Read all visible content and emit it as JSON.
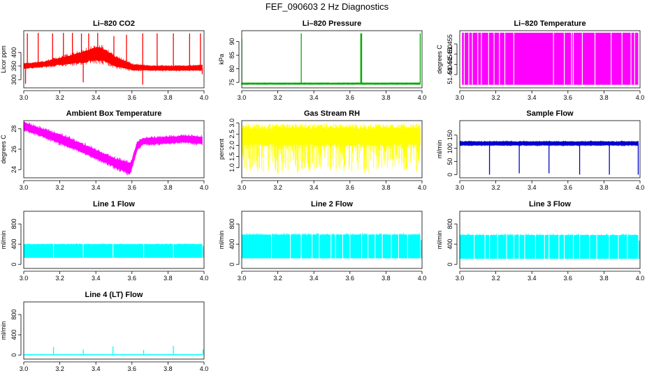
{
  "page": {
    "title": "FEF_090603  2 Hz Diagnostics"
  },
  "chart_data": [
    {
      "type": "line",
      "title": "Li–820 CO2",
      "ylabel": "Licor ppm",
      "xlim": [
        3.0,
        4.0
      ],
      "ylim": [
        270,
        480
      ],
      "xticks": [
        "3.0",
        "3.2",
        "3.4",
        "3.6",
        "3.8",
        "4.0"
      ],
      "yticks": [
        {
          "v": 300,
          "t": "300"
        },
        {
          "v": 350,
          "t": "350"
        },
        {
          "v": 400,
          "t": "400"
        }
      ],
      "color": "#ff0000",
      "series": [
        {
          "kind": "band",
          "x": [
            3.0,
            3.1,
            3.2,
            3.3,
            3.4,
            3.45,
            3.5,
            3.6,
            3.7,
            3.8,
            3.9,
            3.99
          ],
          "lower": [
            342,
            348,
            355,
            362,
            372,
            368,
            352,
            336,
            335,
            335,
            335,
            336
          ],
          "upper": [
            358,
            364,
            380,
            395,
            418,
            412,
            385,
            356,
            350,
            350,
            350,
            352
          ],
          "spikes": [
            {
              "x": 3.02,
              "v": 470
            },
            {
              "x": 3.08,
              "v": 472
            },
            {
              "x": 3.16,
              "v": 470
            },
            {
              "x": 3.22,
              "v": 472
            },
            {
              "x": 3.27,
              "v": 472
            },
            {
              "x": 3.32,
              "v": 470
            },
            {
              "x": 3.36,
              "v": 470
            },
            {
              "x": 3.41,
              "v": 472
            },
            {
              "x": 3.5,
              "v": 460
            },
            {
              "x": 3.57,
              "v": 465
            },
            {
              "x": 3.66,
              "v": 470
            },
            {
              "x": 3.74,
              "v": 470
            },
            {
              "x": 3.83,
              "v": 470
            },
            {
              "x": 3.92,
              "v": 470
            },
            {
              "x": 3.98,
              "v": 470
            },
            {
              "x": 3.01,
              "v": 285
            },
            {
              "x": 3.33,
              "v": 290
            },
            {
              "x": 3.66,
              "v": 282
            },
            {
              "x": 3.99,
              "v": 320
            }
          ]
        }
      ]
    },
    {
      "type": "line",
      "title": "Li–820 Pressure",
      "ylabel": "kPa",
      "xlim": [
        3.0,
        4.0
      ],
      "ylim": [
        73,
        94
      ],
      "xticks": [
        "3.0",
        "3.2",
        "3.4",
        "3.6",
        "3.8",
        "4.0"
      ],
      "yticks": [
        {
          "v": 75,
          "t": "75"
        },
        {
          "v": 80,
          "t": "80"
        },
        {
          "v": 85,
          "t": "85"
        },
        {
          "v": 90,
          "t": "90"
        }
      ],
      "color": "#00aa00",
      "series": [
        {
          "kind": "band",
          "x": [
            3.0,
            3.99
          ],
          "lower": [
            74.3,
            74.3
          ],
          "upper": [
            74.8,
            74.8
          ],
          "spikes": [
            {
              "x": 3.0,
              "v": 91.0
            },
            {
              "x": 3.33,
              "v": 93.0
            },
            {
              "x": 3.66,
              "v": 93.0
            },
            {
              "x": 3.665,
              "v": 93.0
            },
            {
              "x": 3.99,
              "v": 93.0
            }
          ]
        }
      ]
    },
    {
      "type": "line",
      "title": "Li–820 Temperature",
      "ylabel": "degrees C",
      "xlim": [
        3.0,
        4.0
      ],
      "ylim": [
        51.4335,
        51.4615
      ],
      "xticks": [
        "3.0",
        "3.2",
        "3.4",
        "3.6",
        "3.8",
        "4.0"
      ],
      "yticks": [
        {
          "v": 51.44,
          "t": "51.440"
        },
        {
          "v": 51.445,
          "t": "51.445"
        },
        {
          "v": 51.45,
          "t": "51.450"
        },
        {
          "v": 51.455,
          "t": "51.455"
        }
      ],
      "color": "#ff00ff",
      "series": [
        {
          "kind": "toggle",
          "low": 51.435,
          "high": 51.4605,
          "gaps": [
            3.01,
            3.025,
            3.05,
            3.07,
            3.1,
            3.12,
            3.16,
            3.19,
            3.22,
            3.25,
            3.3,
            3.52,
            3.58,
            3.62,
            3.63,
            3.68,
            3.75,
            3.84,
            3.9,
            3.95,
            3.97
          ]
        }
      ]
    },
    {
      "type": "line",
      "title": "Ambient Box Temperature",
      "ylabel": "degrees C",
      "xlim": [
        3.0,
        4.0
      ],
      "ylim": [
        23.2,
        28.8
      ],
      "xticks": [
        "3.0",
        "3.2",
        "3.4",
        "3.6",
        "3.8",
        "4.0"
      ],
      "yticks": [
        {
          "v": 24,
          "t": "24"
        },
        {
          "v": 26,
          "t": "26"
        },
        {
          "v": 28,
          "t": "28"
        }
      ],
      "color": "#ff00ff",
      "series": [
        {
          "kind": "band",
          "x": [
            3.0,
            3.1,
            3.2,
            3.3,
            3.4,
            3.5,
            3.59,
            3.6,
            3.63,
            3.66,
            3.7,
            3.8,
            3.9,
            3.99
          ],
          "lower": [
            27.9,
            27.3,
            26.6,
            25.9,
            25.1,
            24.3,
            23.6,
            24.2,
            26.0,
            26.5,
            26.5,
            26.6,
            26.7,
            26.5
          ],
          "upper": [
            28.6,
            28.0,
            27.4,
            26.7,
            25.9,
            25.1,
            24.6,
            24.9,
            26.7,
            27.0,
            27.1,
            27.2,
            27.3,
            27.2
          ],
          "spikes": []
        }
      ]
    },
    {
      "type": "line",
      "title": "Gas Stream RH",
      "ylabel": "percent",
      "xlim": [
        3.0,
        4.0
      ],
      "ylim": [
        0.55,
        3.1
      ],
      "xticks": [
        "3.0",
        "3.2",
        "3.4",
        "3.6",
        "3.8",
        "4.0"
      ],
      "yticks": [
        {
          "v": 1.0,
          "t": "1.0"
        },
        {
          "v": 1.5,
          "t": "1.5"
        },
        {
          "v": 2.0,
          "t": "2.0"
        },
        {
          "v": 2.5,
          "t": "2.5"
        },
        {
          "v": 3.0,
          "t": "3.0"
        }
      ],
      "color": "#ffff00",
      "series": [
        {
          "kind": "noiseband",
          "x": [
            3.0,
            3.99
          ],
          "lower": [
            2.05,
            2.05
          ],
          "upper": [
            2.75,
            2.75
          ],
          "dipTo": 0.75,
          "peakTo": 2.95,
          "density": 300
        }
      ]
    },
    {
      "type": "line",
      "title": "Sample Flow",
      "ylabel": "ml/min",
      "xlim": [
        3.0,
        4.0
      ],
      "ylim": [
        -12,
        205
      ],
      "xticks": [
        "3.0",
        "3.2",
        "3.4",
        "3.6",
        "3.8",
        "4.0"
      ],
      "yticks": [
        {
          "v": 0,
          "t": "0"
        },
        {
          "v": 50,
          "t": "50"
        },
        {
          "v": 100,
          "t": "100"
        },
        {
          "v": 150,
          "t": "150"
        }
      ],
      "color": "#0000cc",
      "series": [
        {
          "kind": "band",
          "x": [
            3.0,
            3.99
          ],
          "lower": [
            112,
            112
          ],
          "upper": [
            125,
            125
          ],
          "spikes": [
            {
              "x": 3.165,
              "v": 0
            },
            {
              "x": 3.33,
              "v": 5
            },
            {
              "x": 3.495,
              "v": 5
            },
            {
              "x": 3.665,
              "v": 0
            },
            {
              "x": 3.83,
              "v": 0
            },
            {
              "x": 3.99,
              "v": 0
            }
          ]
        }
      ]
    },
    {
      "type": "line",
      "title": "Line 1 Flow",
      "ylabel": "ml/min",
      "xlim": [
        3.0,
        4.0
      ],
      "ylim": [
        -80,
        1050
      ],
      "xticks": [
        "3.0",
        "3.2",
        "3.4",
        "3.6",
        "3.8",
        "4.0"
      ],
      "yticks": [
        {
          "v": 0,
          "t": "0"
        },
        {
          "v": 400,
          "t": "400"
        },
        {
          "v": 800,
          "t": "800"
        }
      ],
      "color": "#00ffff",
      "series": [
        {
          "kind": "blockband",
          "x0": 3.0,
          "x1": 3.99,
          "lower": 130,
          "upper": 400,
          "gaps": [
            3.165,
            3.33,
            3.495,
            3.665,
            3.83
          ],
          "tail": {
            "x": 3.995,
            "v": 360
          }
        }
      ]
    },
    {
      "type": "line",
      "title": "Line 2 Flow",
      "ylabel": "ml/min",
      "xlim": [
        3.0,
        4.0
      ],
      "ylim": [
        -80,
        1050
      ],
      "xticks": [
        "3.0",
        "3.2",
        "3.4",
        "3.6",
        "3.8",
        "4.0"
      ],
      "yticks": [
        {
          "v": 0,
          "t": "0"
        },
        {
          "v": 400,
          "t": "400"
        },
        {
          "v": 800,
          "t": "800"
        }
      ],
      "color": "#00ffff",
      "series": [
        {
          "kind": "blockband",
          "x0": 3.0,
          "x1": 3.99,
          "lower": 120,
          "upper": 590,
          "gaps": [
            3.165,
            3.27,
            3.33,
            3.39,
            3.43,
            3.495,
            3.52,
            3.56,
            3.6,
            3.665,
            3.7,
            3.74,
            3.78,
            3.83,
            3.87,
            3.92
          ],
          "tail": {
            "x": 3.995,
            "v": 480
          }
        }
      ]
    },
    {
      "type": "line",
      "title": "Line 3 Flow",
      "ylabel": "ml/min",
      "xlim": [
        3.0,
        4.0
      ],
      "ylim": [
        -80,
        1050
      ],
      "xticks": [
        "3.0",
        "3.2",
        "3.4",
        "3.6",
        "3.8",
        "4.0"
      ],
      "yticks": [
        {
          "v": 0,
          "t": "0"
        },
        {
          "v": 400,
          "t": "400"
        },
        {
          "v": 800,
          "t": "800"
        }
      ],
      "color": "#00ffff",
      "series": [
        {
          "kind": "blockband",
          "x0": 3.0,
          "x1": 3.99,
          "lower": 110,
          "upper": 580,
          "gaps": [
            3.08,
            3.14,
            3.165,
            3.21,
            3.26,
            3.3,
            3.33,
            3.36,
            3.42,
            3.47,
            3.495,
            3.55,
            3.58,
            3.63,
            3.665,
            3.72,
            3.76,
            3.83,
            3.88,
            3.93
          ],
          "tail": {
            "x": 3.995,
            "v": 470
          }
        }
      ]
    },
    {
      "type": "line",
      "title": "Line 4 (LT) Flow",
      "ylabel": "ml/min",
      "xlim": [
        3.0,
        4.0
      ],
      "ylim": [
        -80,
        1050
      ],
      "xticks": [
        "3.0",
        "3.2",
        "3.4",
        "3.6",
        "3.8",
        "4.0"
      ],
      "yticks": [
        {
          "v": 0,
          "t": "0"
        },
        {
          "v": 400,
          "t": "400"
        },
        {
          "v": 800,
          "t": "800"
        }
      ],
      "color": "#00ffff",
      "series": [
        {
          "kind": "band",
          "x": [
            3.0,
            3.99
          ],
          "lower": [
            0,
            0
          ],
          "upper": [
            10,
            10
          ],
          "spikes": [
            {
              "x": 3.165,
              "v": 160
            },
            {
              "x": 3.33,
              "v": 110
            },
            {
              "x": 3.495,
              "v": 170
            },
            {
              "x": 3.665,
              "v": 100
            },
            {
              "x": 3.83,
              "v": 180
            },
            {
              "x": 3.995,
              "v": 110
            }
          ]
        }
      ]
    }
  ]
}
